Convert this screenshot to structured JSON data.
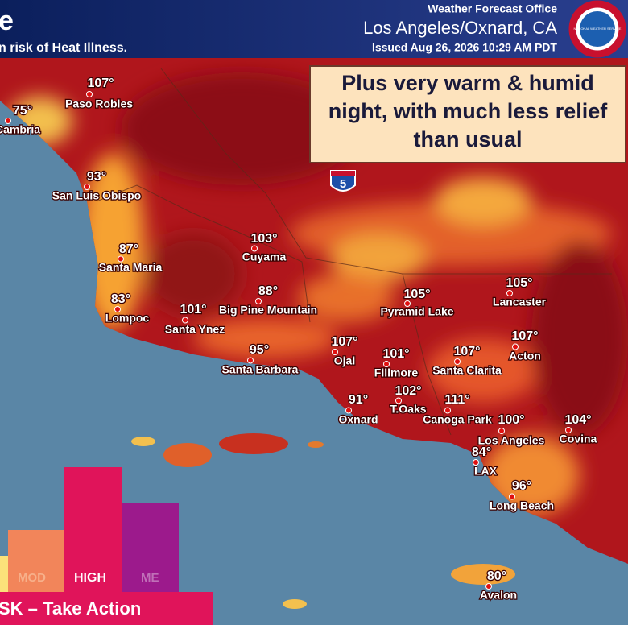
{
  "header": {
    "title": "e",
    "subtitle": "n risk of Heat Illness.",
    "office": "Weather Forecast Office",
    "location": "Los Angeles/Oxnard, CA",
    "issued": "Issued Aug 26, 2026 10:29 AM PDT",
    "logo_text": "NATIONAL WEATHER SERVICE"
  },
  "callout": "Plus very warm & humid night, with much less relief than usual",
  "interstate": "5",
  "cities": [
    {
      "temp": "107°",
      "name": "Paso Robles"
    },
    {
      "temp": "75°",
      "name": "Cambria"
    },
    {
      "temp": "93°",
      "name": "San Luis Obispo"
    },
    {
      "temp": "87°",
      "name": "Santa Maria"
    },
    {
      "temp": "83°",
      "name": "Lompoc"
    },
    {
      "temp": "101°",
      "name": "Santa Ynez"
    },
    {
      "temp": "88°",
      "name": "Big Pine Mountain"
    },
    {
      "temp": "103°",
      "name": "Cuyama"
    },
    {
      "temp": "95°",
      "name": "Santa Barbara"
    },
    {
      "temp": "105°",
      "name": "Pyramid Lake"
    },
    {
      "temp": "105°",
      "name": "Lancaster"
    },
    {
      "temp": "107°",
      "name": "Ojai"
    },
    {
      "temp": "101°",
      "name": "Fillmore"
    },
    {
      "temp": "107°",
      "name": "Santa Clarita"
    },
    {
      "temp": "107°",
      "name": "Acton"
    },
    {
      "temp": "102°",
      "name": "T.Oaks"
    },
    {
      "temp": "91°",
      "name": "Oxnard"
    },
    {
      "temp": "111°",
      "name": "Canoga Park"
    },
    {
      "temp": "100°",
      "name": "Los Angeles"
    },
    {
      "temp": "104°",
      "name": "Covina"
    },
    {
      "temp": "84°",
      "name": "LAX"
    },
    {
      "temp": "96°",
      "name": "Long Beach"
    },
    {
      "temp": "80°",
      "name": "Avalon"
    }
  ],
  "legend": {
    "levels": [
      "MOD",
      "HIGH",
      "ME"
    ],
    "banner": "SK – Take Action"
  }
}
